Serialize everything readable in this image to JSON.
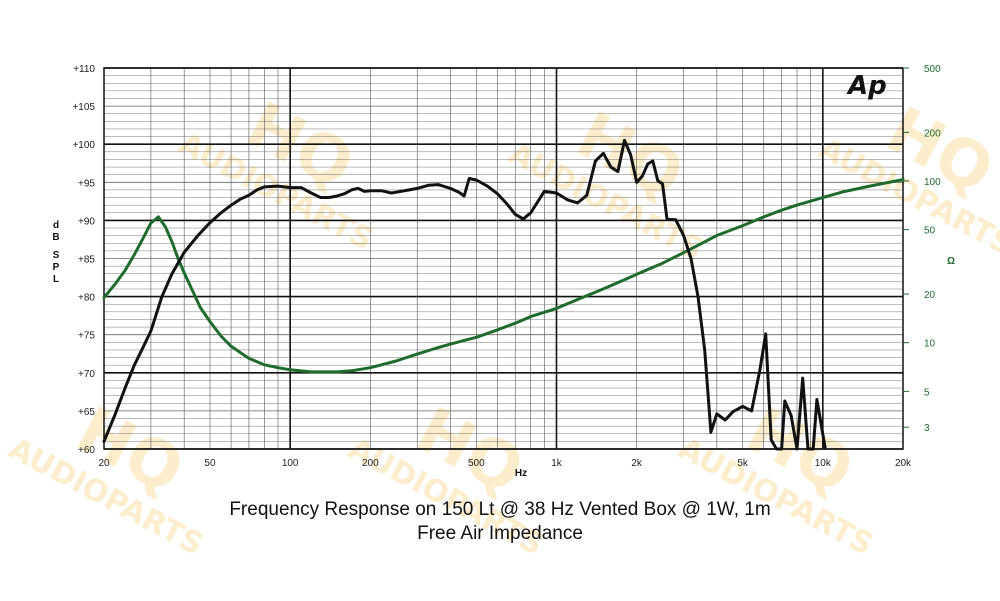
{
  "captions": {
    "line1": "Frequency Response on 150 Lt @ 38 Hz Vented Box @ 1W, 1m",
    "line2": "Free Air Impedance"
  },
  "logo": "Ap",
  "watermark": {
    "line1": "HQ",
    "line2": "AUDIOPARTS"
  },
  "colors": {
    "spl": "#111111",
    "impedance": "#1f6b2e",
    "watermark": "#f6c14a"
  },
  "chart_data": {
    "type": "line",
    "title": "",
    "xlabel": "Hz",
    "ylabel": "dB SPL",
    "y2label": "Ω",
    "x_scale": "log",
    "y2_scale": "log",
    "xlim": [
      20,
      20000
    ],
    "ylim": [
      60,
      110
    ],
    "y2lim": [
      2.2,
      500
    ],
    "grid": true,
    "x_ticks": [
      20,
      50,
      100,
      200,
      500,
      1000,
      2000,
      5000,
      10000,
      20000
    ],
    "x_tick_labels": [
      "20",
      "50",
      "100",
      "200",
      "500",
      "1k",
      "2k",
      "5k",
      "10k",
      "20k"
    ],
    "y_ticks": [
      60,
      65,
      70,
      75,
      80,
      85,
      90,
      95,
      100,
      105,
      110
    ],
    "y_tick_labels": [
      "+60",
      "+65",
      "+70",
      "+75",
      "+80",
      "+85",
      "+90",
      "+95",
      "+100",
      "+105",
      "+110"
    ],
    "y2_ticks": [
      3,
      5,
      10,
      20,
      50,
      100,
      200,
      500
    ],
    "y2_tick_labels": [
      "3",
      "5",
      "10",
      "20",
      "50",
      "100",
      "200",
      "500"
    ],
    "series": [
      {
        "axis": "left",
        "points": [
          [
            20,
            61
          ],
          [
            22,
            64.5
          ],
          [
            24,
            68
          ],
          [
            26,
            71
          ],
          [
            28,
            73.3
          ],
          [
            30,
            75.5
          ],
          [
            33,
            80
          ],
          [
            36,
            83
          ],
          [
            40,
            85.8
          ],
          [
            45,
            88
          ],
          [
            50,
            89.7
          ],
          [
            55,
            91
          ],
          [
            60,
            92
          ],
          [
            65,
            92.8
          ],
          [
            70,
            93.3
          ],
          [
            75,
            94
          ],
          [
            80,
            94.4
          ],
          [
            90,
            94.5
          ],
          [
            100,
            94.3
          ],
          [
            110,
            94.3
          ],
          [
            120,
            93.6
          ],
          [
            130,
            93
          ],
          [
            140,
            93
          ],
          [
            150,
            93.2
          ],
          [
            160,
            93.5
          ],
          [
            170,
            94
          ],
          [
            180,
            94.2
          ],
          [
            190,
            93.8
          ],
          [
            200,
            93.9
          ],
          [
            220,
            93.9
          ],
          [
            240,
            93.6
          ],
          [
            260,
            93.8
          ],
          [
            280,
            94
          ],
          [
            300,
            94.2
          ],
          [
            330,
            94.6
          ],
          [
            360,
            94.7
          ],
          [
            400,
            94.2
          ],
          [
            430,
            93.7
          ],
          [
            450,
            93.2
          ],
          [
            470,
            95.5
          ],
          [
            500,
            95.3
          ],
          [
            550,
            94.5
          ],
          [
            600,
            93.5
          ],
          [
            650,
            92.2
          ],
          [
            700,
            90.8
          ],
          [
            750,
            90.2
          ],
          [
            800,
            91
          ],
          [
            900,
            93.8
          ],
          [
            1000,
            93.6
          ],
          [
            1100,
            92.7
          ],
          [
            1200,
            92.3
          ],
          [
            1300,
            93.3
          ],
          [
            1400,
            97.8
          ],
          [
            1500,
            98.8
          ],
          [
            1600,
            97
          ],
          [
            1700,
            96.4
          ],
          [
            1800,
            100.5
          ],
          [
            1900,
            98.6
          ],
          [
            2000,
            95
          ],
          [
            2100,
            95.8
          ],
          [
            2200,
            97.4
          ],
          [
            2300,
            97.8
          ],
          [
            2400,
            95.2
          ],
          [
            2500,
            94.8
          ],
          [
            2600,
            90.2
          ],
          [
            2700,
            90.1
          ],
          [
            2800,
            90.1
          ],
          [
            3000,
            88
          ],
          [
            3200,
            85
          ],
          [
            3400,
            80
          ],
          [
            3600,
            73
          ],
          [
            3800,
            62.2
          ],
          [
            4000,
            64.6
          ],
          [
            4300,
            63.8
          ],
          [
            4600,
            64.9
          ],
          [
            5000,
            65.6
          ],
          [
            5400,
            65
          ],
          [
            5800,
            70.3
          ],
          [
            6100,
            75.1
          ],
          [
            6400,
            61.2
          ],
          [
            6700,
            60
          ],
          [
            7000,
            60
          ],
          [
            7200,
            66.3
          ],
          [
            7600,
            64.4
          ],
          [
            8000,
            60
          ],
          [
            8400,
            69.3
          ],
          [
            8800,
            60
          ],
          [
            9200,
            60
          ],
          [
            9500,
            66.5
          ],
          [
            10200,
            60.2
          ]
        ]
      },
      {
        "axis": "right",
        "points": [
          [
            20,
            19
          ],
          [
            22,
            23
          ],
          [
            24,
            28
          ],
          [
            26,
            35
          ],
          [
            28,
            44
          ],
          [
            30,
            55
          ],
          [
            32,
            60
          ],
          [
            34,
            52
          ],
          [
            36,
            42
          ],
          [
            38,
            33
          ],
          [
            40,
            27
          ],
          [
            43,
            21
          ],
          [
            46,
            16.5
          ],
          [
            50,
            13.5
          ],
          [
            55,
            11
          ],
          [
            60,
            9.5
          ],
          [
            70,
            8
          ],
          [
            80,
            7.3
          ],
          [
            90,
            7
          ],
          [
            100,
            6.8
          ],
          [
            120,
            6.6
          ],
          [
            150,
            6.6
          ],
          [
            170,
            6.7
          ],
          [
            200,
            7
          ],
          [
            250,
            7.7
          ],
          [
            300,
            8.5
          ],
          [
            350,
            9.2
          ],
          [
            400,
            9.8
          ],
          [
            500,
            10.8
          ],
          [
            600,
            12
          ],
          [
            700,
            13.2
          ],
          [
            800,
            14.5
          ],
          [
            1000,
            16.3
          ],
          [
            1200,
            18.5
          ],
          [
            1500,
            21.5
          ],
          [
            1800,
            24.5
          ],
          [
            2000,
            26.5
          ],
          [
            2500,
            31
          ],
          [
            3000,
            36
          ],
          [
            3500,
            41
          ],
          [
            4000,
            46
          ],
          [
            5000,
            53
          ],
          [
            6000,
            60
          ],
          [
            7000,
            66
          ],
          [
            8000,
            71
          ],
          [
            10000,
            79
          ],
          [
            12000,
            86
          ],
          [
            15000,
            93
          ],
          [
            20000,
            102
          ]
        ]
      }
    ]
  }
}
